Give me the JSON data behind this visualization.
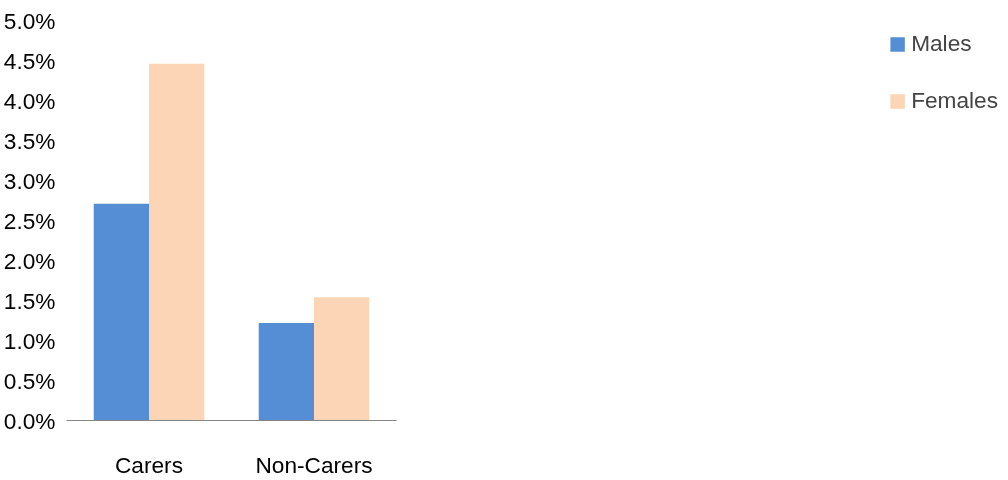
{
  "chart_data": {
    "type": "bar",
    "categories": [
      "Carers",
      "Non-Carers"
    ],
    "series": [
      {
        "name": "Males",
        "color": "#558ed5",
        "values": [
          2.71,
          1.22
        ]
      },
      {
        "name": "Females",
        "color": "#fbd5b5",
        "values": [
          4.46,
          1.54
        ]
      }
    ],
    "ylim": [
      0,
      5
    ],
    "yticks": [
      {
        "value": 0,
        "label": "0.0%"
      },
      {
        "value": 0.5,
        "label": "0.5%"
      },
      {
        "value": 1,
        "label": "1.0%"
      },
      {
        "value": 1.5,
        "label": "1.5%"
      },
      {
        "value": 2,
        "label": "2.0%"
      },
      {
        "value": 2.5,
        "label": "2.5%"
      },
      {
        "value": 3,
        "label": "3.0%"
      },
      {
        "value": 3.5,
        "label": "3.5%"
      },
      {
        "value": 4,
        "label": "4.0%"
      },
      {
        "value": 4.5,
        "label": "4.5%"
      },
      {
        "value": 5,
        "label": "5.0%"
      }
    ],
    "grid": false,
    "legend": "right"
  }
}
